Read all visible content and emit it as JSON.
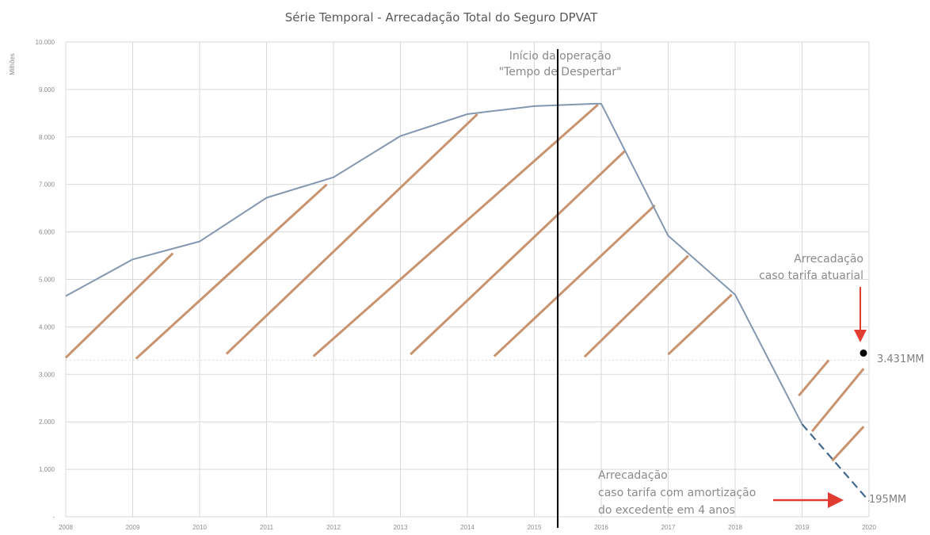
{
  "chart_data": {
    "type": "line",
    "title": "Série Temporal - Arrecadação Total do Seguro DPVAT",
    "ylabel": "Milhões",
    "xlabel": "",
    "ylim": [
      0,
      10000
    ],
    "ytick_labels": [
      "-",
      "1.000",
      "2.000",
      "3.000",
      "4.000",
      "5.000",
      "6.000",
      "7.000",
      "8.000",
      "9.000",
      "10.000"
    ],
    "x_ticks": [
      2008,
      2009,
      2010,
      2011,
      2012,
      2013,
      2014,
      2015,
      2016,
      2017,
      2018,
      2019,
      2020
    ],
    "xlim": [
      2008,
      2020
    ],
    "grid": true,
    "series": [
      {
        "style": "solid",
        "color": "#8497b0",
        "x": [
          2008,
          2009,
          2010,
          2011,
          2012,
          2013,
          2014,
          2014.4,
          2015,
          2015.9,
          2016,
          2017,
          2018,
          2019
        ],
        "y": [
          4650,
          5420,
          5800,
          6720,
          7150,
          8020,
          8480,
          8550,
          8650,
          8700,
          8700,
          5920,
          4680,
          1950
        ]
      },
      {
        "style": "dashed",
        "color": "#44688f",
        "x": [
          2019,
          2020
        ],
        "y": [
          1950,
          330
        ]
      }
    ],
    "reference_line": {
      "y": 3300,
      "style": "dotted",
      "color": "#d9d9d9"
    },
    "hatch": {
      "color": "#c8946f",
      "segments": [
        {
          "x1": 2008,
          "y1": 3350,
          "x2": 2009.6,
          "y2": 5550
        },
        {
          "x1": 2009.05,
          "y1": 3330,
          "x2": 2011.9,
          "y2": 7000
        },
        {
          "x1": 2010.4,
          "y1": 3430,
          "x2": 2014.15,
          "y2": 8480
        },
        {
          "x1": 2011.7,
          "y1": 3380,
          "x2": 2015.95,
          "y2": 8680
        },
        {
          "x1": 2013.15,
          "y1": 3420,
          "x2": 2016.35,
          "y2": 7700
        },
        {
          "x1": 2014.4,
          "y1": 3380,
          "x2": 2016.8,
          "y2": 6560
        },
        {
          "x1": 2015.75,
          "y1": 3370,
          "x2": 2017.3,
          "y2": 5500
        },
        {
          "x1": 2017,
          "y1": 3420,
          "x2": 2017.95,
          "y2": 4680
        },
        {
          "x1": 2018.95,
          "y1": 2550,
          "x2": 2019.4,
          "y2": 3300
        },
        {
          "x1": 2019.15,
          "y1": 1800,
          "x2": 2019.92,
          "y2": 3120
        },
        {
          "x1": 2019.45,
          "y1": 1180,
          "x2": 2019.92,
          "y2": 1900
        }
      ]
    },
    "vertical_marker": {
      "x": 2015.35,
      "color": "#000000"
    },
    "annotations": {
      "operation_line1": "Início da operação",
      "operation_line2": "\"Tempo de Despertar\"",
      "actuarial_line1": "Arrecadação",
      "actuarial_line2": "caso tarifa atuarial",
      "actuarial_value": "3.431MM",
      "actuarial_point": {
        "x": 2020,
        "y": 3431
      },
      "amort_line1": "Arrecadação",
      "amort_line2": "caso tarifa com amortização",
      "amort_line3": "do excedente em 4 anos",
      "amort_value": "195MM",
      "arrow_color": "#e03c31"
    }
  }
}
